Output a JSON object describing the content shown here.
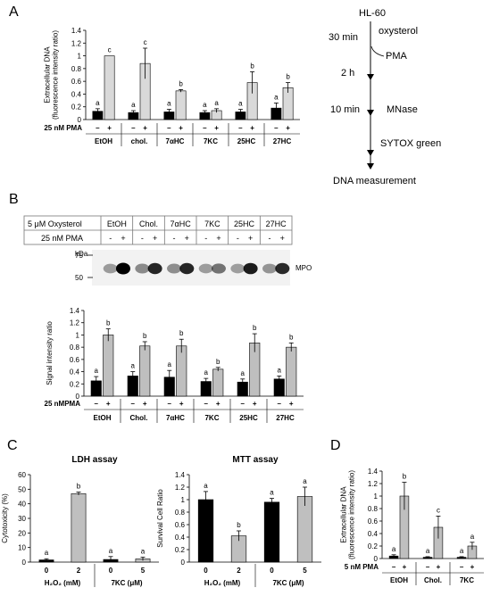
{
  "panels": {
    "a": "A",
    "b": "B",
    "c": "C",
    "d": "D"
  },
  "flow": {
    "start": "HL-60",
    "step1_time": "30 min",
    "step1": "oxysterol",
    "step2": "PMA",
    "step2_time": "2 h",
    "step3_time": "10 min",
    "step3": "MNase",
    "step4": "SYTOX green",
    "end": "DNA measurement"
  },
  "blot": {
    "row1_label": "5 μM Oxysterol",
    "row2_label": "25 nM PMA",
    "groups": [
      "EtOH",
      "Chol.",
      "7αHC",
      "7KC",
      "25HC",
      "27HC"
    ],
    "pma_signs": [
      "-",
      "+"
    ],
    "kda_label": "kDa",
    "markers": [
      "75",
      "50"
    ],
    "band_label": "MPO"
  },
  "chart_data": [
    {
      "type": "bar",
      "panel": "A",
      "ylabel": "Extracellular DNA (fluorescence intensity ratio)",
      "ylabel_lines": [
        "Extracellular DNA",
        "(fluorescence intensity ratio)"
      ],
      "treatment_label": "25 nM PMA",
      "pma_signs": [
        "–",
        "+"
      ],
      "categories": [
        "EtOH",
        "chol.",
        "7αHC",
        "7KC",
        "25HC",
        "27HC"
      ],
      "ylim": [
        0,
        1.4
      ],
      "yticks": [
        "0",
        "0.2",
        "0.4",
        "0.6",
        "0.8",
        "1",
        "1.2",
        "1.4"
      ],
      "series": [
        {
          "sign": "–",
          "color": "#000000",
          "values": [
            0.13,
            0.11,
            0.12,
            0.11,
            0.12,
            0.18
          ],
          "errors": [
            0.04,
            0.03,
            0.04,
            0.03,
            0.04,
            0.08
          ],
          "letters": [
            "a",
            "a",
            "a",
            "a",
            "a",
            "a"
          ]
        },
        {
          "sign": "+",
          "color": "#d9d9d9",
          "values": [
            1.0,
            0.88,
            0.45,
            0.14,
            0.58,
            0.5
          ],
          "errors": [
            0.0,
            0.24,
            0.02,
            0.03,
            0.17,
            0.08
          ],
          "letters": [
            "c",
            "c",
            "b",
            "a",
            "b",
            "b"
          ]
        }
      ]
    },
    {
      "type": "bar",
      "panel": "B",
      "ylabel": "Signal intensity ratio",
      "treatment_label": "25 nMPMA",
      "pma_signs": [
        "–",
        "+"
      ],
      "categories": [
        "EtOH",
        "Chol.",
        "7αHC",
        "7KC",
        "25HC",
        "27HC"
      ],
      "ylim": [
        0,
        1.4
      ],
      "yticks": [
        "0",
        "0.2",
        "0.4",
        "0.6",
        "0.8",
        "1",
        "1.2",
        "1.4"
      ],
      "series": [
        {
          "sign": "–",
          "color": "#000000",
          "values": [
            0.25,
            0.33,
            0.31,
            0.24,
            0.23,
            0.28
          ],
          "errors": [
            0.07,
            0.07,
            0.11,
            0.05,
            0.05,
            0.05
          ],
          "letters": [
            "a",
            "a",
            "a",
            "a",
            "a",
            "a"
          ]
        },
        {
          "sign": "+",
          "color": "#bfbfbf",
          "values": [
            1.0,
            0.82,
            0.82,
            0.44,
            0.87,
            0.8
          ],
          "errors": [
            0.1,
            0.07,
            0.11,
            0.03,
            0.15,
            0.07
          ],
          "letters": [
            "b",
            "b",
            "b",
            "b",
            "b",
            "b"
          ]
        }
      ]
    },
    {
      "type": "bar",
      "panel": "C",
      "title": "LDH assay",
      "ylabel": "Cytotoxicity (%)",
      "ylim": [
        0,
        60
      ],
      "yticks": [
        "0",
        "10",
        "20",
        "30",
        "40",
        "50",
        "60"
      ],
      "groups": [
        {
          "label": "H₂O₂ (mM)",
          "ticks": [
            "0",
            "2"
          ]
        },
        {
          "label": "7KC (μM)",
          "ticks": [
            "0",
            "5"
          ]
        }
      ],
      "bar_colors": [
        "#000000",
        "#bfbfbf",
        "#000000",
        "#bfbfbf"
      ],
      "values": [
        1.5,
        47,
        1.8,
        2.2
      ],
      "errors": [
        0.8,
        1.0,
        2.0,
        1.2
      ],
      "letters": [
        "a",
        "b",
        "a",
        "a"
      ]
    },
    {
      "type": "bar",
      "panel": "C",
      "title": "MTT assay",
      "ylabel": "Survival Cell Ratio",
      "ylim": [
        0,
        1.4
      ],
      "yticks": [
        "0",
        "0.2",
        "0.4",
        "0.6",
        "0.8",
        "1",
        "1.2",
        "1.4"
      ],
      "groups": [
        {
          "label": "H₂O₂ (mM)",
          "ticks": [
            "0",
            "2"
          ]
        },
        {
          "label": "7KC (μM)",
          "ticks": [
            "0",
            "5"
          ]
        }
      ],
      "bar_colors": [
        "#000000",
        "#bfbfbf",
        "#000000",
        "#bfbfbf"
      ],
      "values": [
        1.0,
        0.42,
        0.96,
        1.05
      ],
      "errors": [
        0.13,
        0.08,
        0.06,
        0.15
      ],
      "letters": [
        "a",
        "b",
        "a",
        "a"
      ]
    },
    {
      "type": "bar",
      "panel": "D",
      "ylabel": "Extracellular DNA (fluorescence intensity ratio)",
      "ylabel_lines": [
        "Extracellular DNA",
        "(fluorescence intensity ratio)"
      ],
      "treatment_label": "5 nM PMA",
      "pma_signs": [
        "–",
        "+"
      ],
      "categories": [
        "EtOH",
        "Chol.",
        "7KC"
      ],
      "ylim": [
        0,
        1.4
      ],
      "yticks": [
        "0",
        "0.2",
        "0.4",
        "0.6",
        "0.8",
        "1",
        "1.2",
        "1.4"
      ],
      "series": [
        {
          "sign": "–",
          "color": "#000000",
          "values": [
            0.04,
            0.02,
            0.02
          ],
          "errors": [
            0.02,
            0.01,
            0.01
          ],
          "letters": [
            "a",
            "a",
            "a"
          ]
        },
        {
          "sign": "+",
          "color": "#bfbfbf",
          "values": [
            1.0,
            0.5,
            0.2
          ],
          "errors": [
            0.22,
            0.18,
            0.06
          ],
          "letters": [
            "b",
            "c",
            "a"
          ]
        }
      ]
    }
  ]
}
